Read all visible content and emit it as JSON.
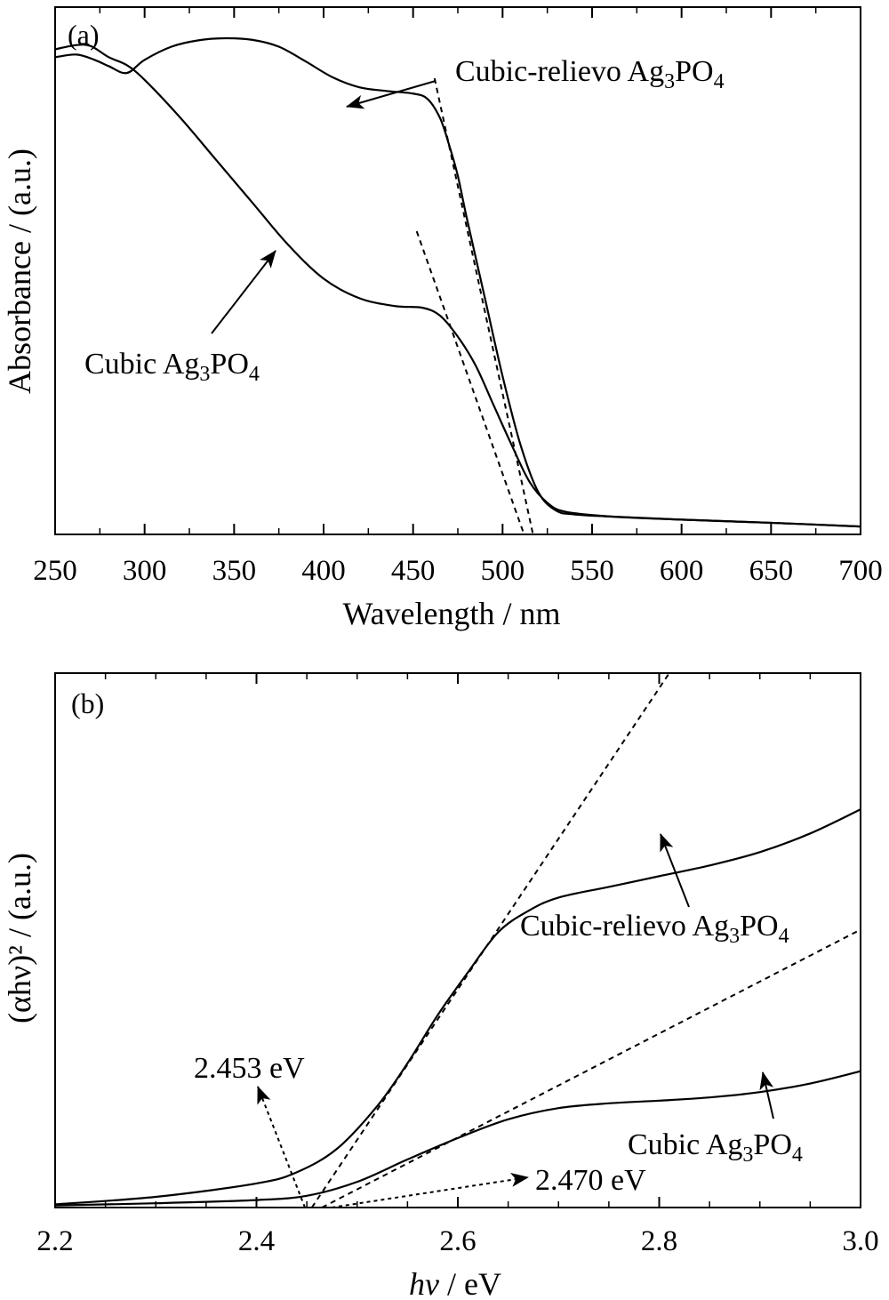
{
  "chart_data": [
    {
      "type": "line",
      "panel_label": "(a)",
      "xlabel": "Wavelength / nm",
      "ylabel": "Absorbance / (a.u.)",
      "xlim": [
        250,
        700
      ],
      "ylim": [
        0,
        1
      ],
      "x_ticks": [
        250,
        300,
        350,
        400,
        450,
        500,
        550,
        600,
        650,
        700
      ],
      "y_ticks_labeled": false,
      "series": [
        {
          "name": "Cubic-relievo Ag3PO4",
          "points": [
            [
              250,
              0.905
            ],
            [
              262,
              0.91
            ],
            [
              272,
              0.9
            ],
            [
              280,
              0.888
            ],
            [
              290,
              0.875
            ],
            [
              300,
              0.9
            ],
            [
              315,
              0.925
            ],
            [
              330,
              0.937
            ],
            [
              345,
              0.941
            ],
            [
              360,
              0.938
            ],
            [
              375,
              0.925
            ],
            [
              390,
              0.897
            ],
            [
              405,
              0.867
            ],
            [
              420,
              0.848
            ],
            [
              435,
              0.841
            ],
            [
              450,
              0.836
            ],
            [
              458,
              0.826
            ],
            [
              465,
              0.79
            ],
            [
              470,
              0.74
            ],
            [
              475,
              0.68
            ],
            [
              480,
              0.6
            ],
            [
              490,
              0.45
            ],
            [
              500,
              0.3
            ],
            [
              510,
              0.17
            ],
            [
              520,
              0.08
            ],
            [
              530,
              0.045
            ],
            [
              540,
              0.038
            ],
            [
              560,
              0.034
            ],
            [
              600,
              0.028
            ],
            [
              650,
              0.022
            ],
            [
              700,
              0.015
            ]
          ]
        },
        {
          "name": "Cubic Ag3PO4",
          "points": [
            [
              250,
              0.92
            ],
            [
              262,
              0.928
            ],
            [
              270,
              0.926
            ],
            [
              280,
              0.905
            ],
            [
              290,
              0.89
            ],
            [
              300,
              0.862
            ],
            [
              320,
              0.79
            ],
            [
              340,
              0.71
            ],
            [
              360,
              0.63
            ],
            [
              380,
              0.55
            ],
            [
              400,
              0.485
            ],
            [
              420,
              0.448
            ],
            [
              440,
              0.433
            ],
            [
              455,
              0.43
            ],
            [
              465,
              0.415
            ],
            [
              475,
              0.375
            ],
            [
              485,
              0.32
            ],
            [
              495,
              0.245
            ],
            [
              505,
              0.17
            ],
            [
              515,
              0.1
            ],
            [
              525,
              0.06
            ],
            [
              535,
              0.043
            ],
            [
              560,
              0.034
            ],
            [
              600,
              0.028
            ],
            [
              650,
              0.022
            ],
            [
              700,
              0.015
            ]
          ]
        }
      ],
      "tangent_lines": [
        {
          "x1": 462,
          "y1": 0.865,
          "x2": 517,
          "y2": 0.0
        },
        {
          "x1": 452,
          "y1": 0.575,
          "x2": 512,
          "y2": 0.0
        }
      ],
      "annotations": [
        {
          "text": "Cubic-relievo Ag",
          "sub": "3",
          "text2": "PO",
          "sub2": "4"
        },
        {
          "text": "Cubic Ag",
          "sub": "3",
          "text2": "PO",
          "sub2": "4"
        }
      ]
    },
    {
      "type": "line",
      "panel_label": "(b)",
      "xlabel": "hν / eV",
      "xlabel_italic_part": "hν",
      "xlabel_rest": " / eV",
      "ylabel": "(αhν)² / (a.u.)",
      "xlim": [
        2.2,
        3.0
      ],
      "ylim": [
        0,
        1
      ],
      "x_ticks": [
        "2.2",
        "2.4",
        "2.6",
        "2.8",
        "3.0"
      ],
      "y_ticks_labeled": false,
      "series": [
        {
          "name": "Cubic-relievo Ag3PO4",
          "points": [
            [
              2.2,
              0.006
            ],
            [
              2.3,
              0.02
            ],
            [
              2.4,
              0.045
            ],
            [
              2.44,
              0.066
            ],
            [
              2.48,
              0.11
            ],
            [
              2.52,
              0.19
            ],
            [
              2.55,
              0.27
            ],
            [
              2.58,
              0.36
            ],
            [
              2.61,
              0.44
            ],
            [
              2.64,
              0.515
            ],
            [
              2.67,
              0.555
            ],
            [
              2.7,
              0.58
            ],
            [
              2.75,
              0.6
            ],
            [
              2.8,
              0.62
            ],
            [
              2.85,
              0.64
            ],
            [
              2.9,
              0.665
            ],
            [
              2.95,
              0.7
            ],
            [
              3.0,
              0.745
            ]
          ]
        },
        {
          "name": "Cubic Ag3PO4",
          "points": [
            [
              2.2,
              0.004
            ],
            [
              2.3,
              0.008
            ],
            [
              2.4,
              0.014
            ],
            [
              2.45,
              0.022
            ],
            [
              2.5,
              0.048
            ],
            [
              2.55,
              0.09
            ],
            [
              2.6,
              0.13
            ],
            [
              2.65,
              0.165
            ],
            [
              2.7,
              0.186
            ],
            [
              2.75,
              0.195
            ],
            [
              2.8,
              0.2
            ],
            [
              2.85,
              0.206
            ],
            [
              2.9,
              0.216
            ],
            [
              2.95,
              0.232
            ],
            [
              3.0,
              0.255
            ]
          ]
        }
      ],
      "tangent_lines": [
        {
          "x1": 2.455,
          "y1": 0.0,
          "x2": 2.81,
          "y2": 1.0
        },
        {
          "x1": 2.465,
          "y1": 0.0,
          "x2": 3.0,
          "y2": 0.52
        }
      ],
      "annotations": [
        {
          "text": "Cubic-relievo Ag",
          "sub": "3",
          "text2": "PO",
          "sub2": "4"
        },
        {
          "text": "Cubic Ag",
          "sub": "3",
          "text2": "PO",
          "sub2": "4"
        },
        {
          "text": "2.453 eV"
        },
        {
          "text": "2.470 eV"
        }
      ]
    }
  ]
}
